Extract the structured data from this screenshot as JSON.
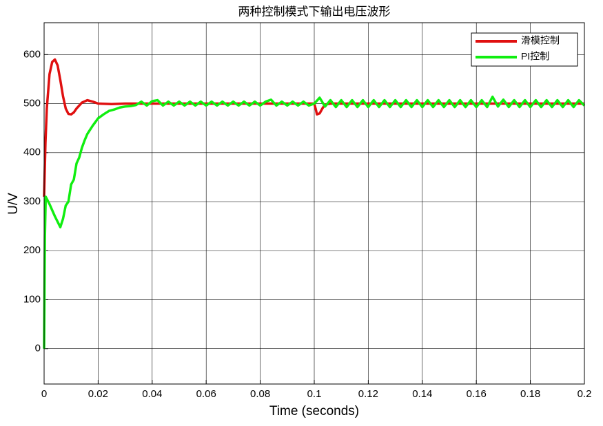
{
  "chart_data": {
    "type": "line",
    "title": "两种控制模式下输出电压波形",
    "xlabel": "Time (seconds)",
    "ylabel": "U/V",
    "xlim": [
      0,
      0.2
    ],
    "xticks": [
      0,
      0.02,
      0.04,
      0.06,
      0.08,
      0.1,
      0.12,
      0.14,
      0.16,
      0.18,
      0.2
    ],
    "ylim": [
      -72,
      665
    ],
    "yticks": [
      0,
      100,
      200,
      300,
      400,
      500,
      600
    ],
    "grid": true,
    "legend": "upper right",
    "series": [
      {
        "name": "滑模控制",
        "color": "#e01010",
        "x": [
          0,
          0.0005,
          0.001,
          0.002,
          0.003,
          0.004,
          0.005,
          0.006,
          0.007,
          0.008,
          0.009,
          0.01,
          0.011,
          0.012,
          0.014,
          0.016,
          0.018,
          0.02,
          0.025,
          0.03,
          0.04,
          0.06,
          0.08,
          0.1,
          0.1005,
          0.101,
          0.102,
          0.103,
          0.104,
          0.106,
          0.12,
          0.15,
          0.2
        ],
        "values": [
          310,
          420,
          490,
          560,
          585,
          590,
          578,
          548,
          515,
          490,
          479,
          478,
          482,
          490,
          502,
          507,
          504,
          500,
          499,
          500,
          500,
          500,
          500,
          500,
          490,
          478,
          480,
          490,
          498,
          500,
          500,
          500,
          500
        ]
      },
      {
        "name": "PI控制",
        "color": "#10ee10",
        "x": [
          0,
          0.0003,
          0.0006,
          0.002,
          0.004,
          0.006,
          0.007,
          0.008,
          0.009,
          0.01,
          0.011,
          0.012,
          0.013,
          0.014,
          0.015,
          0.016,
          0.018,
          0.02,
          0.022,
          0.024,
          0.026,
          0.028,
          0.03,
          0.032,
          0.034,
          0.036,
          0.038,
          0.04,
          0.042,
          0.044,
          0.046,
          0.048,
          0.05,
          0.052,
          0.054,
          0.056,
          0.058,
          0.06,
          0.062,
          0.064,
          0.066,
          0.068,
          0.07,
          0.072,
          0.074,
          0.076,
          0.078,
          0.08,
          0.082,
          0.084,
          0.086,
          0.088,
          0.09,
          0.092,
          0.094,
          0.096,
          0.098,
          0.1,
          0.102,
          0.104,
          0.106,
          0.108,
          0.11,
          0.112,
          0.114,
          0.116,
          0.118,
          0.12,
          0.122,
          0.124,
          0.126,
          0.128,
          0.13,
          0.132,
          0.134,
          0.136,
          0.138,
          0.14,
          0.142,
          0.144,
          0.146,
          0.148,
          0.15,
          0.152,
          0.154,
          0.156,
          0.158,
          0.16,
          0.162,
          0.164,
          0.166,
          0.168,
          0.17,
          0.172,
          0.174,
          0.176,
          0.178,
          0.18,
          0.182,
          0.184,
          0.186,
          0.188,
          0.19,
          0.192,
          0.194,
          0.196,
          0.198,
          0.2
        ],
        "values": [
          0,
          230,
          310,
          295,
          270,
          248,
          265,
          292,
          300,
          335,
          345,
          378,
          390,
          410,
          425,
          438,
          455,
          470,
          478,
          485,
          488,
          492,
          494,
          495,
          497,
          504,
          496,
          505,
          507,
          496,
          504,
          496,
          504,
          496,
          504,
          496,
          504,
          496,
          504,
          496,
          504,
          496,
          504,
          496,
          504,
          496,
          504,
          496,
          504,
          508,
          496,
          504,
          496,
          504,
          496,
          504,
          496,
          500,
          512,
          494,
          507,
          493,
          507,
          493,
          507,
          493,
          507,
          493,
          507,
          493,
          507,
          493,
          507,
          493,
          507,
          493,
          507,
          493,
          507,
          493,
          507,
          493,
          507,
          493,
          507,
          493,
          507,
          493,
          507,
          493,
          514,
          494,
          508,
          493,
          507,
          493,
          507,
          493,
          507,
          493,
          507,
          493,
          507,
          493,
          507,
          493,
          507,
          496
        ]
      }
    ]
  }
}
